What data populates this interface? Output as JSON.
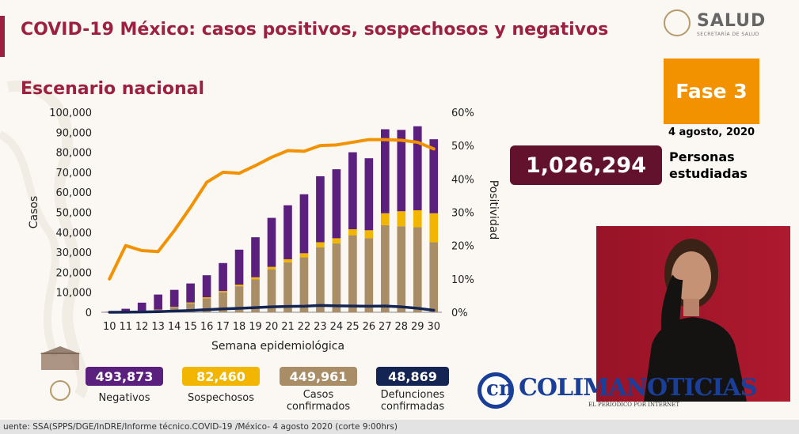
{
  "header": {
    "title": "COVID-19 México: casos positivos, sospechosos y negativos",
    "subtitle": "Escenario nacional"
  },
  "logo": {
    "word": "SALUD",
    "sub": "SECRETARÍA DE SALUD"
  },
  "phase": {
    "label": "Fase 3",
    "date": "4 agosto, 2020"
  },
  "studied": {
    "value": "1,026,294",
    "label_line1": "Personas",
    "label_line2": "estudiadas"
  },
  "summary": [
    {
      "value": "493,873",
      "label": "Negativos",
      "color": "#5b1f7e"
    },
    {
      "value": "82,460",
      "label": "Sospechosos",
      "color": "#f2b600"
    },
    {
      "value": "449,961",
      "label": "Casos confirmados",
      "color": "#a98d66"
    },
    {
      "value": "48,869",
      "label": "Defunciones confirmadas",
      "color": "#152553"
    }
  ],
  "source": "uente: SSA(SPPS/DGE/InDRE/Informe técnico.COVID-19 /México- 4 agosto 2020 (corte 9:00hrs)",
  "watermark": {
    "text": "COLIMANOTICIAS",
    "tag": "EL PERIÓDICO POR INTERNET",
    "glyph": "cn"
  },
  "colors": {
    "accent_red": "#9c2140",
    "phase_orange": "#f39200",
    "studied_bg": "#63122e",
    "title": "#9c2140",
    "positivity": "#f39200"
  },
  "chart_data": {
    "type": "bar",
    "stacked": true,
    "xlabel": "Semana epidemiológica",
    "ylabel": "Casos",
    "y2label": "Positividad",
    "ylim": [
      0,
      100000
    ],
    "y2lim": [
      0,
      60
    ],
    "yticks": [
      "0",
      "10,000",
      "20,000",
      "30,000",
      "40,000",
      "50,000",
      "60,000",
      "70,000",
      "80,000",
      "90,000",
      "100,000"
    ],
    "y2ticks": [
      "0%",
      "10%",
      "20%",
      "30%",
      "40%",
      "50%",
      "60%"
    ],
    "categories": [
      "10",
      "11",
      "12",
      "13",
      "14",
      "15",
      "16",
      "17",
      "18",
      "19",
      "20",
      "21",
      "22",
      "23",
      "24",
      "25",
      "26",
      "27",
      "28",
      "29",
      "30"
    ],
    "series": [
      {
        "name": "Casos confirmados",
        "kind": "bar",
        "color": "#a98d66",
        "values": [
          50,
          300,
          700,
          1200,
          2500,
          4500,
          7000,
          10000,
          13000,
          16500,
          21500,
          25000,
          27500,
          32500,
          34500,
          38500,
          37000,
          43500,
          43000,
          42500,
          35000
        ]
      },
      {
        "name": "Sospechosos",
        "kind": "bar",
        "color": "#f2b600",
        "values": [
          20,
          50,
          100,
          150,
          200,
          400,
          500,
          600,
          800,
          1000,
          1200,
          1500,
          2000,
          2500,
          2500,
          3000,
          4000,
          6000,
          7500,
          8500,
          14500
        ]
      },
      {
        "name": "Negativos",
        "kind": "bar",
        "color": "#5b1f7e",
        "values": [
          150,
          1400,
          4000,
          7500,
          8500,
          9500,
          11000,
          14000,
          17500,
          20000,
          24500,
          27000,
          29500,
          33000,
          34500,
          38500,
          36000,
          42000,
          40700,
          42000,
          37000
        ]
      },
      {
        "name": "Defunciones confirmadas",
        "kind": "line",
        "axis": "left",
        "color": "#152553",
        "values": [
          0,
          50,
          150,
          300,
          600,
          900,
          1300,
          1700,
          2000,
          2300,
          2700,
          2900,
          3000,
          3400,
          3200,
          3100,
          3000,
          3100,
          2700,
          2000,
          1000
        ]
      },
      {
        "name": "Positividad",
        "kind": "line",
        "axis": "right",
        "color": "#f39200",
        "values": [
          10,
          20,
          18.5,
          18.2,
          24.5,
          31.5,
          39,
          42,
          41.7,
          44,
          46.5,
          48.5,
          48.3,
          50,
          50.2,
          51,
          51.8,
          51.8,
          51.6,
          51,
          49
        ]
      }
    ]
  }
}
